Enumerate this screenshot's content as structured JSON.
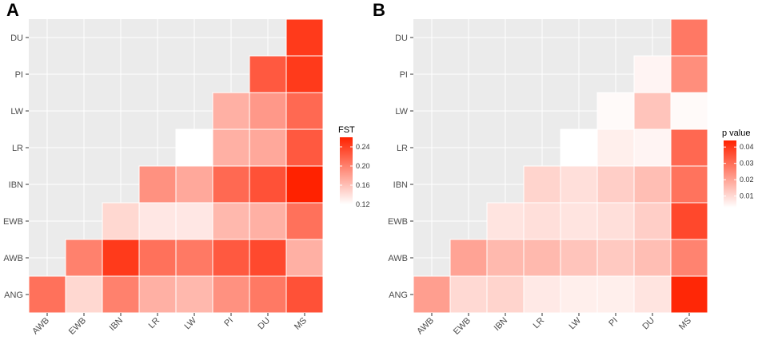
{
  "figure": {
    "panel_labels": [
      "A",
      "B"
    ]
  },
  "chart_data": [
    {
      "type": "heatmap",
      "panel": "A",
      "legend_title": "FST",
      "legend_ticks": [
        0.12,
        0.16,
        0.2,
        0.24
      ],
      "legend_tick_labels": [
        "0.12",
        "0.16",
        "0.20",
        "0.24"
      ],
      "scale_range": [
        0.12,
        0.26
      ],
      "x_categories": [
        "AWB",
        "EWB",
        "IBN",
        "LR",
        "LW",
        "PI",
        "DU",
        "MS"
      ],
      "y_categories": [
        "ANG",
        "AWB",
        "EWB",
        "IBN",
        "LR",
        "LW",
        "PI",
        "DU"
      ],
      "colors": {
        "low": "#ffffff",
        "high": "#ff2200"
      },
      "cells": [
        {
          "x": "AWB",
          "y": "ANG",
          "value": 0.21
        },
        {
          "x": "EWB",
          "y": "ANG",
          "value": 0.145
        },
        {
          "x": "IBN",
          "y": "ANG",
          "value": 0.2
        },
        {
          "x": "LR",
          "y": "ANG",
          "value": 0.17
        },
        {
          "x": "LW",
          "y": "ANG",
          "value": 0.165
        },
        {
          "x": "PI",
          "y": "ANG",
          "value": 0.19
        },
        {
          "x": "DU",
          "y": "ANG",
          "value": 0.205
        },
        {
          "x": "MS",
          "y": "ANG",
          "value": 0.23
        },
        {
          "x": "EWB",
          "y": "AWB",
          "value": 0.2
        },
        {
          "x": "IBN",
          "y": "AWB",
          "value": 0.245
        },
        {
          "x": "LR",
          "y": "AWB",
          "value": 0.21
        },
        {
          "x": "LW",
          "y": "AWB",
          "value": 0.205
        },
        {
          "x": "PI",
          "y": "AWB",
          "value": 0.225
        },
        {
          "x": "DU",
          "y": "AWB",
          "value": 0.235
        },
        {
          "x": "MS",
          "y": "AWB",
          "value": 0.17
        },
        {
          "x": "IBN",
          "y": "EWB",
          "value": 0.145
        },
        {
          "x": "LR",
          "y": "EWB",
          "value": 0.135
        },
        {
          "x": "LW",
          "y": "EWB",
          "value": 0.135
        },
        {
          "x": "PI",
          "y": "EWB",
          "value": 0.165
        },
        {
          "x": "DU",
          "y": "EWB",
          "value": 0.17
        },
        {
          "x": "MS",
          "y": "EWB",
          "value": 0.21
        },
        {
          "x": "LR",
          "y": "IBN",
          "value": 0.19
        },
        {
          "x": "LW",
          "y": "IBN",
          "value": 0.175
        },
        {
          "x": "PI",
          "y": "IBN",
          "value": 0.215
        },
        {
          "x": "DU",
          "y": "IBN",
          "value": 0.23
        },
        {
          "x": "MS",
          "y": "IBN",
          "value": 0.26
        },
        {
          "x": "LW",
          "y": "LR",
          "value": 0.12
        },
        {
          "x": "PI",
          "y": "LR",
          "value": 0.17
        },
        {
          "x": "DU",
          "y": "LR",
          "value": 0.175
        },
        {
          "x": "MS",
          "y": "LR",
          "value": 0.225
        },
        {
          "x": "PI",
          "y": "LW",
          "value": 0.17
        },
        {
          "x": "DU",
          "y": "LW",
          "value": 0.185
        },
        {
          "x": "MS",
          "y": "LW",
          "value": 0.215
        },
        {
          "x": "DU",
          "y": "PI",
          "value": 0.225
        },
        {
          "x": "MS",
          "y": "PI",
          "value": 0.245
        },
        {
          "x": "MS",
          "y": "DU",
          "value": 0.245
        }
      ]
    },
    {
      "type": "heatmap",
      "panel": "B",
      "legend_title": "p value",
      "legend_ticks": [
        0.01,
        0.02,
        0.03,
        0.04
      ],
      "legend_tick_labels": [
        "0.01",
        "0.02",
        "0.03",
        "0.04"
      ],
      "scale_range": [
        0.003,
        0.044
      ],
      "x_categories": [
        "AWB",
        "EWB",
        "IBN",
        "LR",
        "LW",
        "PI",
        "DU",
        "MS"
      ],
      "y_categories": [
        "ANG",
        "AWB",
        "EWB",
        "IBN",
        "LR",
        "LW",
        "PI",
        "DU"
      ],
      "colors": {
        "low": "#ffffff",
        "high": "#ff2200"
      },
      "cells": [
        {
          "x": "AWB",
          "y": "ANG",
          "value": 0.021
        },
        {
          "x": "EWB",
          "y": "ANG",
          "value": 0.01
        },
        {
          "x": "IBN",
          "y": "ANG",
          "value": 0.011
        },
        {
          "x": "LR",
          "y": "ANG",
          "value": 0.007
        },
        {
          "x": "LW",
          "y": "ANG",
          "value": 0.006
        },
        {
          "x": "PI",
          "y": "ANG",
          "value": 0.006
        },
        {
          "x": "DU",
          "y": "ANG",
          "value": 0.008
        },
        {
          "x": "MS",
          "y": "ANG",
          "value": 0.043
        },
        {
          "x": "EWB",
          "y": "AWB",
          "value": 0.02
        },
        {
          "x": "IBN",
          "y": "AWB",
          "value": 0.016
        },
        {
          "x": "LR",
          "y": "AWB",
          "value": 0.016
        },
        {
          "x": "LW",
          "y": "AWB",
          "value": 0.014
        },
        {
          "x": "PI",
          "y": "AWB",
          "value": 0.013
        },
        {
          "x": "DU",
          "y": "AWB",
          "value": 0.015
        },
        {
          "x": "MS",
          "y": "AWB",
          "value": 0.026
        },
        {
          "x": "IBN",
          "y": "EWB",
          "value": 0.008
        },
        {
          "x": "LR",
          "y": "EWB",
          "value": 0.009
        },
        {
          "x": "LW",
          "y": "EWB",
          "value": 0.008
        },
        {
          "x": "PI",
          "y": "EWB",
          "value": 0.009
        },
        {
          "x": "DU",
          "y": "EWB",
          "value": 0.012
        },
        {
          "x": "MS",
          "y": "EWB",
          "value": 0.037
        },
        {
          "x": "LR",
          "y": "IBN",
          "value": 0.011
        },
        {
          "x": "LW",
          "y": "IBN",
          "value": 0.009
        },
        {
          "x": "PI",
          "y": "IBN",
          "value": 0.012
        },
        {
          "x": "DU",
          "y": "IBN",
          "value": 0.015
        },
        {
          "x": "MS",
          "y": "IBN",
          "value": 0.029
        },
        {
          "x": "LW",
          "y": "LR",
          "value": 0.003
        },
        {
          "x": "PI",
          "y": "LR",
          "value": 0.006
        },
        {
          "x": "DU",
          "y": "LR",
          "value": 0.005
        },
        {
          "x": "MS",
          "y": "LR",
          "value": 0.031
        },
        {
          "x": "PI",
          "y": "LW",
          "value": 0.004
        },
        {
          "x": "DU",
          "y": "LW",
          "value": 0.014
        },
        {
          "x": "MS",
          "y": "LW",
          "value": 0.004
        },
        {
          "x": "DU",
          "y": "PI",
          "value": 0.005
        },
        {
          "x": "MS",
          "y": "PI",
          "value": 0.024
        },
        {
          "x": "MS",
          "y": "DU",
          "value": 0.028
        }
      ]
    }
  ]
}
